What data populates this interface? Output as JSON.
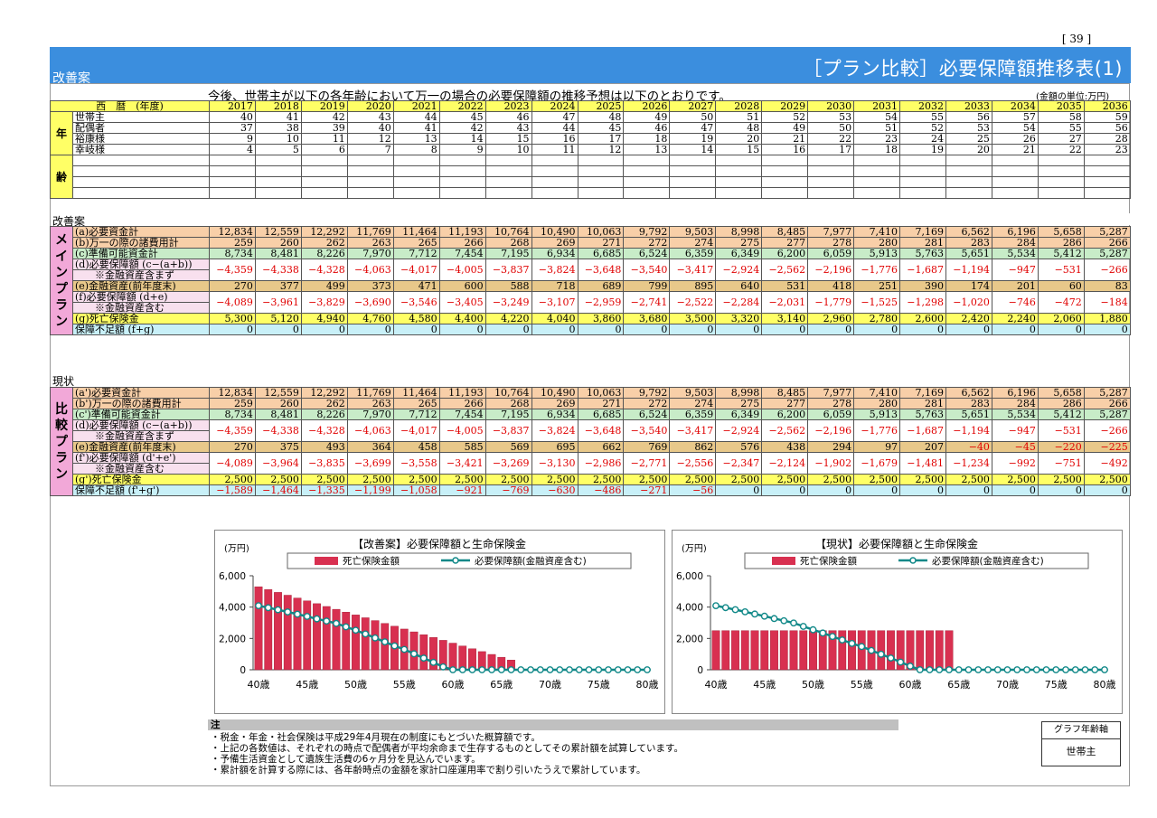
{
  "page_number": "[ 39 ]",
  "header": {
    "left_label": "改善案",
    "title": "［プラン比較］必要保障額推移表(1)"
  },
  "intro": "今後、世帯主が以下の各年齢において万一の場合の必要保障額の推移予想は以下のとおりです。",
  "unit": "(金額の単位:万円)",
  "years_label": "西　暦　(年度)",
  "years": [
    "2017",
    "2018",
    "2019",
    "2020",
    "2021",
    "2022",
    "2023",
    "2024",
    "2025",
    "2026",
    "2027",
    "2028",
    "2029",
    "2030",
    "2031",
    "2032",
    "2033",
    "2034",
    "2035",
    "2036"
  ],
  "age_side": [
    "年",
    "齢"
  ],
  "age_rows": [
    {
      "label": "世帯主",
      "values": [
        "40",
        "41",
        "42",
        "43",
        "44",
        "45",
        "46",
        "47",
        "48",
        "49",
        "50",
        "51",
        "52",
        "53",
        "54",
        "55",
        "56",
        "57",
        "58",
        "59"
      ]
    },
    {
      "label": "配偶者",
      "values": [
        "37",
        "38",
        "39",
        "40",
        "41",
        "42",
        "43",
        "44",
        "45",
        "46",
        "47",
        "48",
        "49",
        "50",
        "51",
        "52",
        "53",
        "54",
        "55",
        "56"
      ]
    },
    {
      "label": "裕康様",
      "values": [
        "9",
        "10",
        "11",
        "12",
        "13",
        "14",
        "15",
        "16",
        "17",
        "18",
        "19",
        "20",
        "21",
        "22",
        "23",
        "24",
        "25",
        "26",
        "27",
        "28"
      ]
    },
    {
      "label": "幸岐様",
      "values": [
        "4",
        "5",
        "6",
        "7",
        "8",
        "9",
        "10",
        "11",
        "12",
        "13",
        "14",
        "15",
        "16",
        "17",
        "18",
        "19",
        "20",
        "21",
        "22",
        "23"
      ]
    }
  ],
  "plan_main": {
    "section_label": "改善案",
    "side_label": "メインプラン",
    "rows": [
      {
        "label": "(a)必要資金計",
        "cls": "ora",
        "values": [
          "12,834",
          "12,559",
          "12,292",
          "11,769",
          "11,464",
          "11,193",
          "10,764",
          "10,490",
          "10,063",
          "9,792",
          "9,503",
          "8,998",
          "8,485",
          "7,977",
          "7,410",
          "7,169",
          "6,562",
          "6,196",
          "5,658",
          "5,287"
        ]
      },
      {
        "label": "(b)万一の際の諸費用計",
        "cls": "ora",
        "values": [
          "259",
          "260",
          "262",
          "263",
          "265",
          "266",
          "268",
          "269",
          "271",
          "272",
          "274",
          "275",
          "277",
          "278",
          "280",
          "281",
          "283",
          "284",
          "286",
          "266"
        ]
      },
      {
        "label": "(c)準備可能資金計",
        "cls": "grn",
        "values": [
          "8,734",
          "8,481",
          "8,226",
          "7,970",
          "7,712",
          "7,454",
          "7,195",
          "6,934",
          "6,685",
          "6,524",
          "6,359",
          "6,349",
          "6,200",
          "6,059",
          "5,913",
          "5,763",
          "5,651",
          "5,534",
          "5,412",
          "5,287"
        ]
      },
      {
        "label": "(d)必要保障額 (c−(a+b))",
        "label2": "※金融資産含まず",
        "cls": "pnk",
        "double": true,
        "values": [
          "−4,359",
          "−4,338",
          "−4,328",
          "−4,063",
          "−4,017",
          "−4,005",
          "−3,837",
          "−3,824",
          "−3,648",
          "−3,540",
          "−3,417",
          "−2,924",
          "−2,562",
          "−2,196",
          "−1,776",
          "−1,687",
          "−1,194",
          "−947",
          "−531",
          "−266"
        ]
      },
      {
        "label": "(e)金融資産(前年度末)",
        "cls": "tan",
        "values": [
          "270",
          "377",
          "499",
          "373",
          "471",
          "600",
          "588",
          "718",
          "689",
          "799",
          "895",
          "640",
          "531",
          "418",
          "251",
          "390",
          "174",
          "201",
          "60",
          "83"
        ]
      },
      {
        "label": "(f)必要保障額 (d+e)",
        "label2": "※金融資産含む",
        "cls": "pnk",
        "double": true,
        "values": [
          "−4,089",
          "−3,961",
          "−3,829",
          "−3,690",
          "−3,546",
          "−3,405",
          "−3,249",
          "−3,107",
          "−2,959",
          "−2,741",
          "−2,522",
          "−2,284",
          "−2,031",
          "−1,779",
          "−1,525",
          "−1,298",
          "−1,020",
          "−746",
          "−472",
          "−184"
        ]
      },
      {
        "label": "(g)死亡保険金",
        "cls": "yel",
        "values": [
          "5,300",
          "5,120",
          "4,940",
          "4,760",
          "4,580",
          "4,400",
          "4,220",
          "4,040",
          "3,860",
          "3,680",
          "3,500",
          "3,320",
          "3,140",
          "2,960",
          "2,780",
          "2,600",
          "2,420",
          "2,240",
          "2,060",
          "1,880"
        ]
      },
      {
        "label": "保障不足額 (f+g)",
        "cls": "blu",
        "values": [
          "0",
          "0",
          "0",
          "0",
          "0",
          "0",
          "0",
          "0",
          "0",
          "0",
          "0",
          "0",
          "0",
          "0",
          "0",
          "0",
          "0",
          "0",
          "0",
          "0"
        ]
      }
    ]
  },
  "plan_compare": {
    "section_label": "現状",
    "side_label": "比較プラン",
    "rows": [
      {
        "label": "(a')必要資金計",
        "cls": "ora",
        "values": [
          "12,834",
          "12,559",
          "12,292",
          "11,769",
          "11,464",
          "11,193",
          "10,764",
          "10,490",
          "10,063",
          "9,792",
          "9,503",
          "8,998",
          "8,485",
          "7,977",
          "7,410",
          "7,169",
          "6,562",
          "6,196",
          "5,658",
          "5,287"
        ]
      },
      {
        "label": "(b')万一の際の諸費用計",
        "cls": "ora",
        "values": [
          "259",
          "260",
          "262",
          "263",
          "265",
          "266",
          "268",
          "269",
          "271",
          "272",
          "274",
          "275",
          "277",
          "278",
          "280",
          "281",
          "283",
          "284",
          "286",
          "266"
        ]
      },
      {
        "label": "(c')準備可能資金計",
        "cls": "grn",
        "values": [
          "8,734",
          "8,481",
          "8,226",
          "7,970",
          "7,712",
          "7,454",
          "7,195",
          "6,934",
          "6,685",
          "6,524",
          "6,359",
          "6,349",
          "6,200",
          "6,059",
          "5,913",
          "5,763",
          "5,651",
          "5,534",
          "5,412",
          "5,287"
        ]
      },
      {
        "label": "(d)必要保障額 (c−(a+b))",
        "label2": "※金融資産含まず",
        "cls": "pnk",
        "double": true,
        "values": [
          "−4,359",
          "−4,338",
          "−4,328",
          "−4,063",
          "−4,017",
          "−4,005",
          "−3,837",
          "−3,824",
          "−3,648",
          "−3,540",
          "−3,417",
          "−2,924",
          "−2,562",
          "−2,196",
          "−1,776",
          "−1,687",
          "−1,194",
          "−947",
          "−531",
          "−266"
        ]
      },
      {
        "label": "(e)金融資産(前年度末)",
        "cls": "tan",
        "values": [
          "270",
          "375",
          "493",
          "364",
          "458",
          "585",
          "569",
          "695",
          "662",
          "769",
          "862",
          "576",
          "438",
          "294",
          "97",
          "207",
          "−40",
          "−45",
          "−220",
          "−225"
        ]
      },
      {
        "label": "(f')必要保障額 (d'+e')",
        "label2": "※金融資産含む",
        "cls": "pnk",
        "double": true,
        "values": [
          "−4,089",
          "−3,964",
          "−3,835",
          "−3,699",
          "−3,558",
          "−3,421",
          "−3,269",
          "−3,130",
          "−2,986",
          "−2,771",
          "−2,556",
          "−2,347",
          "−2,124",
          "−1,902",
          "−1,679",
          "−1,481",
          "−1,234",
          "−992",
          "−751",
          "−492"
        ]
      },
      {
        "label": "(g')死亡保険金",
        "cls": "yel",
        "values": [
          "2,500",
          "2,500",
          "2,500",
          "2,500",
          "2,500",
          "2,500",
          "2,500",
          "2,500",
          "2,500",
          "2,500",
          "2,500",
          "2,500",
          "2,500",
          "2,500",
          "2,500",
          "2,500",
          "2,500",
          "2,500",
          "2,500",
          "2,500"
        ]
      },
      {
        "label": "保障不足額 (f'+g')",
        "cls": "blu",
        "values": [
          "−1,589",
          "−1,464",
          "−1,335",
          "−1,199",
          "−1,058",
          "−921",
          "−769",
          "−630",
          "−486",
          "−271",
          "−56",
          "0",
          "0",
          "0",
          "0",
          "0",
          "0",
          "0",
          "0",
          "0"
        ]
      }
    ]
  },
  "chart_data": [
    {
      "type": "bar",
      "title": "【改善案】必要保障額と生命保険金",
      "ylabel": "(万円)",
      "yticks": [
        "6,000",
        "4,000",
        "2,000",
        "0"
      ],
      "xticks": [
        "40歳",
        "45歳",
        "50歳",
        "55歳",
        "60歳",
        "65歳",
        "70歳",
        "75歳",
        "80歳"
      ],
      "ylim": [
        0,
        6000
      ],
      "x_ages": [
        40,
        80
      ],
      "legend": [
        "死亡保険金額",
        "必要保障額(金融資産含む)"
      ],
      "bar_series": [
        5300,
        5120,
        4940,
        4760,
        4580,
        4400,
        4220,
        4040,
        3860,
        3680,
        3500,
        3320,
        3140,
        2960,
        2780,
        2600,
        2420,
        2240,
        2060,
        1880,
        1700,
        1520,
        1340,
        1160,
        980,
        800,
        620,
        0,
        0,
        0,
        0,
        0,
        0,
        0,
        0,
        0,
        0,
        0,
        0,
        0,
        0
      ],
      "line_series": [
        4089,
        3961,
        3829,
        3690,
        3546,
        3405,
        3249,
        3107,
        2959,
        2741,
        2522,
        2284,
        2031,
        1779,
        1525,
        1298,
        1020,
        746,
        472,
        184,
        0,
        0,
        0,
        0,
        0,
        0,
        0,
        0,
        0,
        0,
        0,
        0,
        0,
        0,
        0,
        0,
        0,
        0,
        0,
        0,
        0
      ]
    },
    {
      "type": "bar",
      "title": "【現状】必要保障額と生命保険金",
      "ylabel": "(万円)",
      "yticks": [
        "6,000",
        "4,000",
        "2,000",
        "0"
      ],
      "xticks": [
        "40歳",
        "45歳",
        "50歳",
        "55歳",
        "60歳",
        "65歳",
        "70歳",
        "75歳",
        "80歳"
      ],
      "ylim": [
        0,
        6000
      ],
      "x_ages": [
        40,
        80
      ],
      "legend": [
        "死亡保険金額",
        "必要保障額(金融資産含む)"
      ],
      "bar_series": [
        2500,
        2500,
        2500,
        2500,
        2500,
        2500,
        2500,
        2500,
        2500,
        2500,
        2500,
        2500,
        2500,
        2500,
        2500,
        2500,
        2500,
        2500,
        2500,
        2500,
        2500,
        2500,
        2500,
        2500,
        2500,
        0,
        0,
        0,
        0,
        0,
        0,
        0,
        0,
        0,
        0,
        0,
        0,
        0,
        0,
        0,
        0
      ],
      "line_series": [
        4089,
        3964,
        3835,
        3699,
        3558,
        3421,
        3269,
        3130,
        2986,
        2771,
        2556,
        2347,
        2124,
        1902,
        1679,
        1481,
        1234,
        992,
        751,
        492,
        233,
        0,
        0,
        0,
        0,
        0,
        0,
        0,
        0,
        0,
        0,
        0,
        0,
        0,
        0,
        0,
        0,
        0,
        0,
        0,
        0
      ]
    }
  ],
  "notes": {
    "heading": "注",
    "lines": [
      "・税金・年金・社会保険は平成29年4月現在の制度にもとづいた概算額です。",
      "・上記の各数値は、それぞれの時点で配偶者が平均余命まで生存するものとしてその累計額を試算しています。",
      "・予備生活資金として遺族生活費の6ヶ月分を見込んでいます。",
      "・累計額を計算する際には、各年齢時点の金額を家計口座運用率で割り引いたうえで累計しています。"
    ]
  },
  "graph_axis": {
    "label": "グラフ年齢軸",
    "value": "世帯主"
  },
  "colors": {
    "header_blue": "#3b8ede",
    "bar_red": "#d83050",
    "line_teal": "#108888",
    "side_pink": "#f2a8d8"
  }
}
